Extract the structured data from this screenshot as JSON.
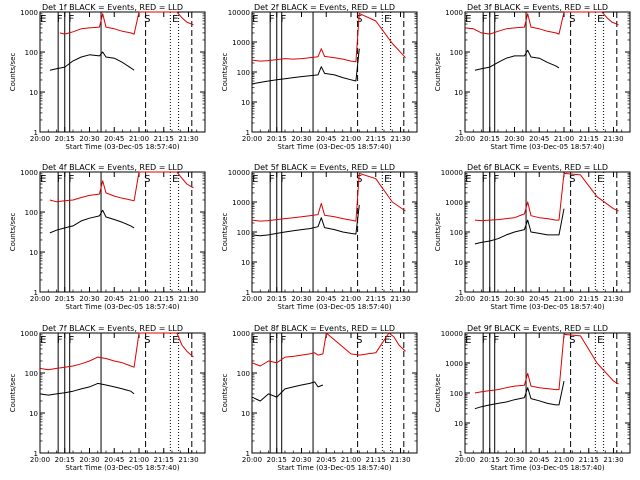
{
  "figure": {
    "colors": {
      "events": "#000000",
      "lld": "#e00000",
      "axes": "#000000",
      "background": "#ffffff"
    },
    "xlabel_template": "Start Time (03-Dec-05 18:57:40)",
    "ylabel": "Counts/sec"
  },
  "chart_data": [
    {
      "type": "line",
      "title": "Det 1f BLACK = Events, RED = LLD",
      "xlabel": "Start Time (03-Dec-05 18:57:40)",
      "ylabel": "Counts/sec",
      "x_tick_labels": [
        "20:00",
        "20:15",
        "20:30",
        "20:45",
        "21:00",
        "21:15",
        "21:30"
      ],
      "y_tick_labels": [
        "1",
        "10",
        "100",
        "1000"
      ],
      "ylim": [
        1,
        1000
      ],
      "yscale": "log",
      "markers": [
        "E",
        "F",
        "F",
        "S",
        "E"
      ],
      "series": [
        {
          "x": [
            "20:06",
            "20:10",
            "20:15",
            "20:20",
            "20:25",
            "20:30",
            "20:36",
            "20:38",
            "20:40",
            "20:45",
            "20:50",
            "20:55",
            "20:57"
          ],
          "values": [
            35,
            38,
            42,
            60,
            75,
            85,
            80,
            100,
            75,
            70,
            55,
            40,
            35
          ]
        },
        {
          "x": [
            "20:12",
            "20:15",
            "20:20",
            "20:25",
            "20:30",
            "20:36",
            "20:38",
            "20:40",
            "20:45",
            "20:50",
            "20:55",
            "20:57",
            "21:00",
            "21:23",
            "21:26",
            "21:29",
            "21:33"
          ],
          "values": [
            300,
            280,
            320,
            380,
            400,
            420,
            900,
            420,
            380,
            330,
            300,
            280,
            1000,
            1000,
            720,
            560,
            480
          ]
        }
      ]
    },
    {
      "type": "line",
      "title": "Det 2f BLACK = Events, RED = LLD",
      "xlabel": "Start Time (03-Dec-05 18:57:40)",
      "ylabel": "Counts/sec",
      "x_tick_labels": [
        "20:00",
        "20:15",
        "20:30",
        "20:45",
        "21:00",
        "21:15",
        "21:30"
      ],
      "y_tick_labels": [
        "1",
        "10",
        "100",
        "1000",
        "10000"
      ],
      "ylim": [
        1,
        10000
      ],
      "yscale": "log",
      "markers": [
        "E",
        "F",
        "F",
        "S",
        "E"
      ],
      "series": [
        {
          "x": [
            "20:00",
            "20:05",
            "20:10",
            "20:15",
            "20:20",
            "20:25",
            "20:30",
            "20:35",
            "20:40",
            "20:42",
            "20:44",
            "20:50",
            "20:55",
            "21:00",
            "21:03",
            "21:05"
          ],
          "values": [
            40,
            45,
            50,
            55,
            60,
            65,
            70,
            75,
            80,
            150,
            90,
            80,
            65,
            55,
            50,
            600
          ]
        },
        {
          "x": [
            "20:00",
            "20:05",
            "20:10",
            "20:15",
            "20:20",
            "20:25",
            "20:30",
            "20:35",
            "20:40",
            "20:42",
            "20:44",
            "20:50",
            "20:55",
            "21:00",
            "21:03",
            "21:05",
            "21:15",
            "21:25",
            "21:33"
          ],
          "values": [
            250,
            230,
            240,
            260,
            280,
            270,
            280,
            300,
            320,
            600,
            330,
            300,
            270,
            230,
            220,
            9000,
            5000,
            900,
            300
          ]
        }
      ]
    },
    {
      "type": "line",
      "title": "Det 3f BLACK = Events, RED = LLD",
      "xlabel": "Start Time (03-Dec-05 18:57:40)",
      "ylabel": "Counts/sec",
      "x_tick_labels": [
        "20:00",
        "20:15",
        "20:30",
        "20:45",
        "21:00",
        "21:15",
        "21:30"
      ],
      "y_tick_labels": [
        "1",
        "10",
        "100",
        "1000"
      ],
      "ylim": [
        1,
        1000
      ],
      "yscale": "log",
      "markers": [
        "E",
        "F",
        "F",
        "S",
        "E"
      ],
      "series": [
        {
          "x": [
            "20:06",
            "20:10",
            "20:15",
            "20:20",
            "20:25",
            "20:30",
            "20:36",
            "20:38",
            "20:40",
            "20:45",
            "20:50",
            "20:55",
            "20:57"
          ],
          "values": [
            35,
            38,
            42,
            55,
            70,
            80,
            80,
            110,
            75,
            70,
            55,
            45,
            40
          ]
        },
        {
          "x": [
            "20:00",
            "20:05",
            "20:10",
            "20:15",
            "20:20",
            "20:25",
            "20:30",
            "20:36",
            "20:38",
            "20:40",
            "20:45",
            "20:50",
            "20:55",
            "20:57",
            "21:00",
            "21:23",
            "21:26",
            "21:29",
            "21:33"
          ],
          "values": [
            400,
            380,
            300,
            280,
            330,
            380,
            400,
            420,
            900,
            420,
            380,
            330,
            300,
            280,
            1000,
            1000,
            720,
            560,
            480
          ]
        }
      ]
    },
    {
      "type": "line",
      "title": "Det 4f BLACK = Events, RED = LLD",
      "xlabel": "Start Time (03-Dec-05 18:57:40)",
      "ylabel": "Counts/sec",
      "x_tick_labels": [
        "20:00",
        "20:15",
        "20:30",
        "20:45",
        "21:00",
        "21:15",
        "21:30"
      ],
      "y_tick_labels": [
        "1",
        "10",
        "100",
        "1000"
      ],
      "ylim": [
        1,
        1000
      ],
      "yscale": "log",
      "markers": [
        "E",
        "F",
        "F",
        "S",
        "E"
      ],
      "series": [
        {
          "x": [
            "20:06",
            "20:10",
            "20:15",
            "20:20",
            "20:25",
            "20:30",
            "20:36",
            "20:38",
            "20:40",
            "20:45",
            "20:50",
            "20:55",
            "20:57"
          ],
          "values": [
            30,
            35,
            40,
            45,
            60,
            70,
            80,
            110,
            75,
            65,
            55,
            45,
            40
          ]
        },
        {
          "x": [
            "20:06",
            "20:10",
            "20:15",
            "20:20",
            "20:25",
            "20:30",
            "20:36",
            "20:38",
            "20:40",
            "20:45",
            "20:50",
            "20:55",
            "20:57",
            "21:00",
            "21:23",
            "21:26",
            "21:29",
            "21:33"
          ],
          "values": [
            200,
            180,
            190,
            200,
            230,
            260,
            280,
            600,
            300,
            250,
            220,
            200,
            190,
            1000,
            1000,
            700,
            500,
            400
          ]
        }
      ]
    },
    {
      "type": "line",
      "title": "Det 5f BLACK = Events, RED = LLD",
      "xlabel": "Start Time (03-Dec-05 18:57:40)",
      "ylabel": "Counts/sec",
      "x_tick_labels": [
        "20:00",
        "20:15",
        "20:30",
        "20:45",
        "21:00",
        "21:15",
        "21:30"
      ],
      "y_tick_labels": [
        "1",
        "10",
        "100",
        "1000",
        "10000"
      ],
      "ylim": [
        1,
        10000
      ],
      "yscale": "log",
      "markers": [
        "E",
        "F",
        "F",
        "S",
        "E"
      ],
      "series": [
        {
          "x": [
            "20:00",
            "20:05",
            "20:10",
            "20:15",
            "20:20",
            "20:25",
            "20:30",
            "20:35",
            "20:40",
            "20:42",
            "20:44",
            "20:50",
            "20:55",
            "21:00",
            "21:03",
            "21:05"
          ],
          "values": [
            80,
            75,
            80,
            90,
            100,
            110,
            120,
            130,
            150,
            300,
            140,
            120,
            100,
            90,
            85,
            800
          ]
        },
        {
          "x": [
            "20:00",
            "20:05",
            "20:10",
            "20:15",
            "20:20",
            "20:25",
            "20:30",
            "20:35",
            "20:40",
            "20:42",
            "20:44",
            "20:50",
            "20:55",
            "21:00",
            "21:03",
            "21:05",
            "21:15",
            "21:25",
            "21:33"
          ],
          "values": [
            250,
            230,
            240,
            260,
            280,
            300,
            320,
            350,
            380,
            900,
            360,
            320,
            280,
            250,
            230,
            9000,
            6000,
            1000,
            500
          ]
        }
      ]
    },
    {
      "type": "line",
      "title": "Det 6f BLACK = Events, RED = LLD",
      "xlabel": "Start Time (03-Dec-05 18:57:40)",
      "ylabel": "Counts/sec",
      "x_tick_labels": [
        "20:00",
        "20:15",
        "20:30",
        "20:45",
        "21:00",
        "21:15",
        "21:30"
      ],
      "y_tick_labels": [
        "1",
        "10",
        "100",
        "1000",
        "10000"
      ],
      "ylim": [
        1,
        10000
      ],
      "yscale": "log",
      "markers": [
        "E",
        "F",
        "F",
        "S",
        "E"
      ],
      "series": [
        {
          "x": [
            "20:06",
            "20:10",
            "20:15",
            "20:20",
            "20:25",
            "20:30",
            "20:36",
            "20:38",
            "20:40",
            "20:45",
            "20:50",
            "20:55",
            "20:57",
            "21:00"
          ],
          "values": [
            40,
            45,
            50,
            60,
            80,
            100,
            120,
            250,
            100,
            90,
            80,
            80,
            80,
            600
          ]
        },
        {
          "x": [
            "20:06",
            "20:10",
            "20:15",
            "20:20",
            "20:25",
            "20:30",
            "20:36",
            "20:38",
            "20:40",
            "20:45",
            "20:50",
            "20:55",
            "20:57",
            "21:00",
            "21:10",
            "21:20",
            "21:30",
            "21:33"
          ],
          "values": [
            250,
            240,
            250,
            260,
            280,
            300,
            400,
            1000,
            350,
            300,
            280,
            250,
            250,
            9000,
            8000,
            1500,
            600,
            500
          ]
        }
      ]
    },
    {
      "type": "line",
      "title": "Det 7f BLACK = Events, RED = LLD",
      "xlabel": "Start Time (03-Dec-05 18:57:40)",
      "ylabel": "Counts/sec",
      "x_tick_labels": [
        "20:00",
        "20:15",
        "20:30",
        "20:45",
        "21:00",
        "21:15",
        "21:30"
      ],
      "y_tick_labels": [
        "1",
        "10",
        "100",
        "1000"
      ],
      "ylim": [
        1,
        1000
      ],
      "yscale": "log",
      "markers": [
        "E",
        "F",
        "F",
        "S",
        "E"
      ],
      "series": [
        {
          "x": [
            "20:00",
            "20:05",
            "20:10",
            "20:15",
            "20:20",
            "20:25",
            "20:30",
            "20:35",
            "20:40",
            "20:45",
            "20:50",
            "20:55",
            "20:57"
          ],
          "values": [
            30,
            28,
            30,
            32,
            35,
            40,
            45,
            55,
            50,
            45,
            40,
            35,
            30
          ]
        },
        {
          "x": [
            "20:00",
            "20:05",
            "20:10",
            "20:15",
            "20:20",
            "20:25",
            "20:30",
            "20:35",
            "20:40",
            "20:45",
            "20:50",
            "20:55",
            "20:57",
            "21:00",
            "21:23",
            "21:26",
            "21:29",
            "21:33"
          ],
          "values": [
            130,
            120,
            130,
            140,
            150,
            170,
            200,
            250,
            230,
            200,
            180,
            150,
            140,
            1000,
            1000,
            500,
            350,
            250
          ]
        }
      ]
    },
    {
      "type": "line",
      "title": "Det 8f BLACK = Events, RED = LLD",
      "xlabel": "Start Time (03-Dec-05 18:57:40)",
      "ylabel": "Counts/sec",
      "x_tick_labels": [
        "20:00",
        "20:15",
        "20:30",
        "20:45",
        "21:00",
        "21:15",
        "21:30"
      ],
      "y_tick_labels": [
        "1",
        "10",
        "100",
        "1000"
      ],
      "ylim": [
        1,
        1000
      ],
      "yscale": "log",
      "markers": [
        "E",
        "F",
        "F",
        "S",
        "E"
      ],
      "series": [
        {
          "x": [
            "20:00",
            "20:05",
            "20:10",
            "20:15",
            "20:20",
            "20:25",
            "20:30",
            "20:35",
            "20:38",
            "20:40",
            "20:43"
          ],
          "values": [
            25,
            20,
            30,
            25,
            40,
            45,
            50,
            55,
            60,
            45,
            50
          ]
        },
        {
          "x": [
            "20:00",
            "20:05",
            "20:10",
            "20:15",
            "20:20",
            "20:25",
            "20:30",
            "20:35",
            "20:38",
            "20:40",
            "20:43",
            "20:45",
            "21:00",
            "21:05",
            "21:10",
            "21:15",
            "21:23",
            "21:26",
            "21:29",
            "21:33"
          ],
          "values": [
            180,
            150,
            200,
            180,
            250,
            260,
            280,
            300,
            320,
            280,
            300,
            1000,
            300,
            280,
            300,
            320,
            1000,
            800,
            500,
            350
          ]
        }
      ]
    },
    {
      "type": "line",
      "title": "Det 9f BLACK = Events, RED = LLD",
      "xlabel": "Start Time (03-Dec-05 18:57:40)",
      "ylabel": "Counts/sec",
      "x_tick_labels": [
        "20:00",
        "20:15",
        "20:30",
        "20:45",
        "21:00",
        "21:15",
        "21:30"
      ],
      "y_tick_labels": [
        "1",
        "10",
        "100",
        "1000",
        "10000"
      ],
      "ylim": [
        1,
        10000
      ],
      "yscale": "log",
      "markers": [
        "E",
        "F",
        "F",
        "S",
        "E"
      ],
      "series": [
        {
          "x": [
            "20:06",
            "20:10",
            "20:15",
            "20:20",
            "20:25",
            "20:30",
            "20:36",
            "20:38",
            "20:40",
            "20:45",
            "20:50",
            "20:55",
            "20:57",
            "21:00"
          ],
          "values": [
            30,
            35,
            40,
            45,
            50,
            60,
            70,
            150,
            65,
            55,
            45,
            40,
            40,
            250
          ]
        },
        {
          "x": [
            "20:06",
            "20:10",
            "20:15",
            "20:20",
            "20:25",
            "20:30",
            "20:36",
            "20:38",
            "20:40",
            "20:45",
            "20:50",
            "20:55",
            "20:57",
            "21:00",
            "21:10",
            "21:20",
            "21:30",
            "21:33"
          ],
          "values": [
            100,
            110,
            120,
            130,
            150,
            170,
            180,
            450,
            170,
            150,
            140,
            130,
            130,
            9000,
            8000,
            1000,
            250,
            200
          ]
        }
      ]
    }
  ]
}
